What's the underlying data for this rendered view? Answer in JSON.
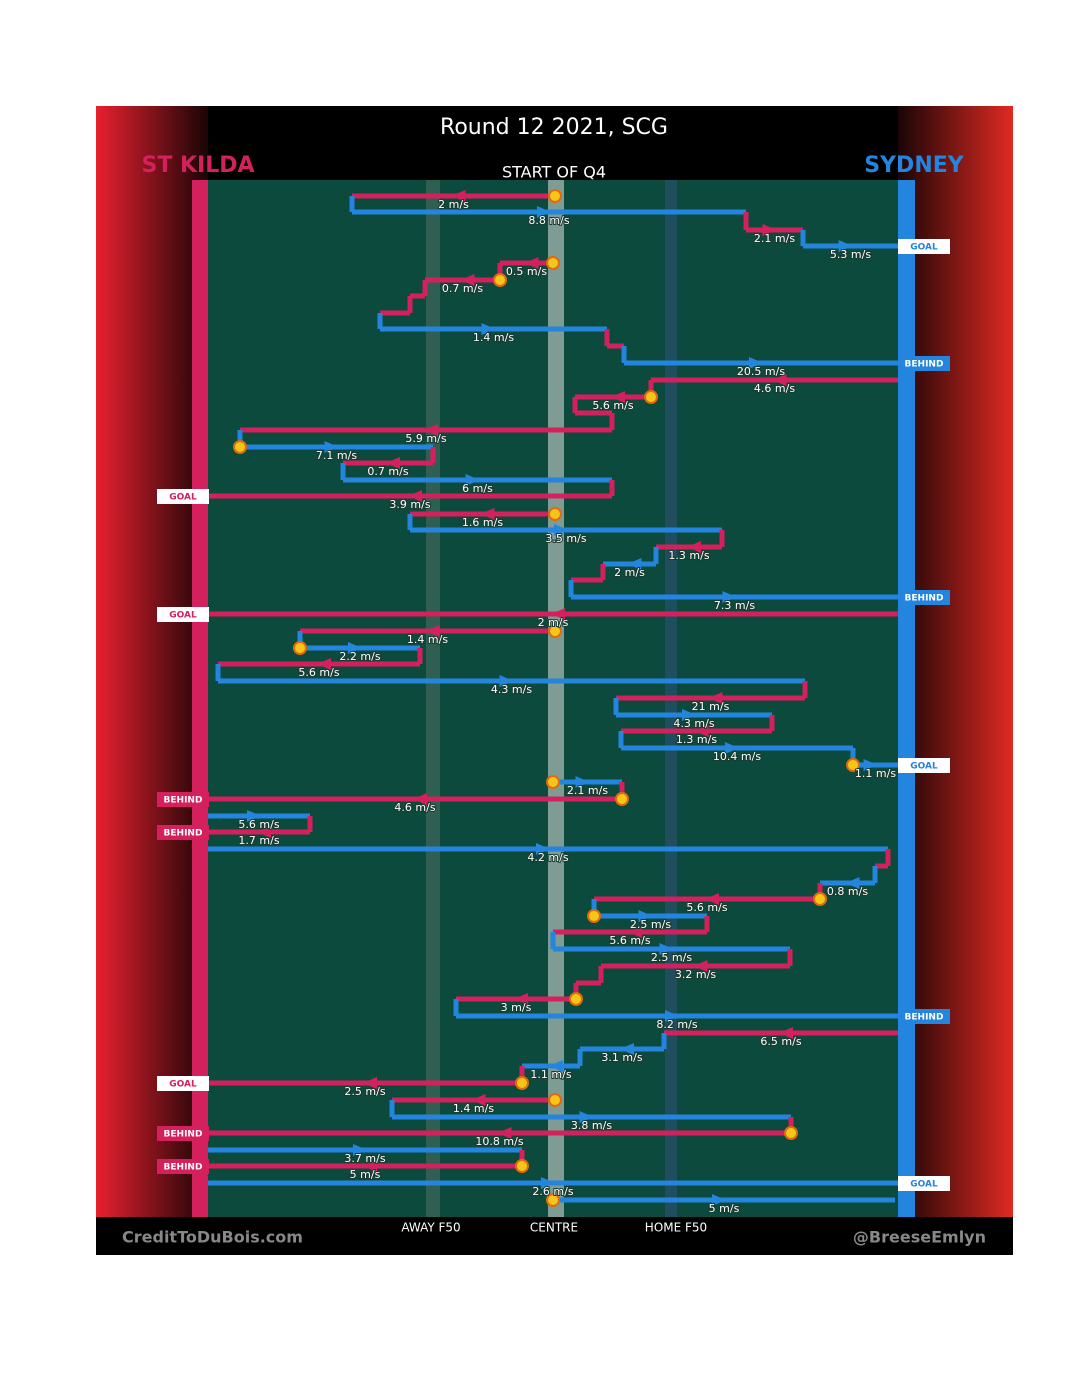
{
  "title": "Round 12 2021, SCG",
  "period": "START OF Q4",
  "teams": [
    "ST KILDA",
    "SYDNEY"
  ],
  "zones": [
    "AWAY F50",
    "CENTRE",
    "HOME F50"
  ],
  "credits": [
    "CreditToDuBois.com",
    "@BreeseEmlyn"
  ],
  "chains": [
    {
      "speeds": [
        "2 m/s",
        "8.8 m/s",
        "2.1 m/s",
        "5.3 m/s"
      ],
      "result": "GOAL"
    },
    {
      "speeds": [
        "0.5 m/s",
        "0.7 m/s",
        "1.4 m/s",
        "20.5 m/s"
      ],
      "result": "BEHIND"
    },
    {
      "speeds": [
        "4.6 m/s",
        "5.6 m/s",
        "5.9 m/s",
        "7.1 m/s",
        "0.7 m/s",
        "6 m/s",
        "3.9 m/s"
      ],
      "result": "GOAL"
    },
    {
      "speeds": [
        "1.6 m/s",
        "3.5 m/s",
        "1.3 m/s",
        "2 m/s",
        "7.3 m/s"
      ],
      "result": "BEHIND"
    },
    {
      "speeds": [
        "2 m/s"
      ],
      "result": "GOAL"
    },
    {
      "speeds": [
        "1.4 m/s",
        "2.2 m/s",
        "5.6 m/s",
        "4.3 m/s",
        "21 m/s",
        "4.3 m/s",
        "1.3 m/s",
        "10.4 m/s",
        "1.1 m/s"
      ],
      "result": "GOAL"
    },
    {
      "speeds": [
        "2.1 m/s",
        "4.6 m/s"
      ],
      "result": "BEHIND"
    },
    {
      "speeds": [
        "5.6 m/s",
        "1.7 m/s"
      ],
      "result": "BEHIND"
    },
    {
      "speeds": [
        "4.2 m/s",
        "0.8 m/s",
        "5.6 m/s",
        "2.5 m/s",
        "5.6 m/s",
        "2.5 m/s",
        "3.2 m/s",
        "3 m/s",
        "8.2 m/s"
      ],
      "result": "BEHIND"
    },
    {
      "speeds": [
        "6.5 m/s",
        "3.1 m/s",
        "1.1 m/s",
        "2.5 m/s"
      ],
      "result": "GOAL"
    },
    {
      "speeds": [
        "1.4 m/s",
        "3.8 m/s",
        "10.8 m/s"
      ],
      "result": "BEHIND"
    },
    {
      "speeds": [
        "3.7 m/s",
        "5 m/s"
      ],
      "result": "BEHIND"
    },
    {
      "speeds": [
        "2.6 m/s"
      ],
      "result": "GOAL"
    },
    {
      "speeds": [
        "5 m/s"
      ]
    }
  ]
}
